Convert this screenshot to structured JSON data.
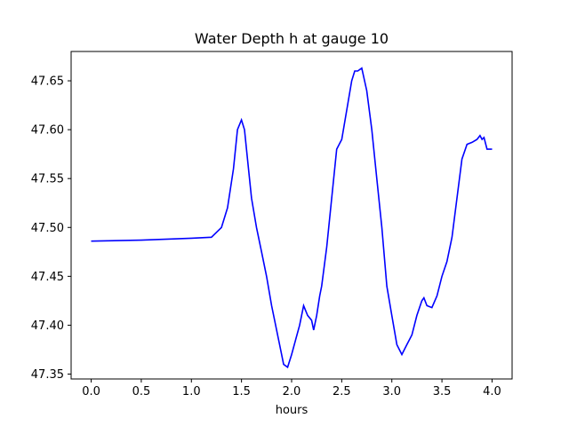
{
  "chart_data": {
    "type": "line",
    "title": "Water Depth h at gauge 10",
    "xlabel": "hours",
    "ylabel": "",
    "xlim": [
      -0.2,
      4.2
    ],
    "ylim": [
      47.345,
      47.68
    ],
    "xticks": [
      0.0,
      0.5,
      1.0,
      1.5,
      2.0,
      2.5,
      3.0,
      3.5,
      4.0
    ],
    "xtick_labels": [
      "0.0",
      "0.5",
      "1.0",
      "1.5",
      "2.0",
      "2.5",
      "3.0",
      "3.5",
      "4.0"
    ],
    "yticks": [
      47.35,
      47.4,
      47.45,
      47.5,
      47.55,
      47.6,
      47.65
    ],
    "ytick_labels": [
      "47.35",
      "47.40",
      "47.45",
      "47.50",
      "47.55",
      "47.60",
      "47.65"
    ],
    "grid": false,
    "color": "#0000ff",
    "series": [
      {
        "x": [
          0.0,
          0.5,
          1.0,
          1.2,
          1.3,
          1.36,
          1.42,
          1.46,
          1.5,
          1.53,
          1.57,
          1.6,
          1.65,
          1.7,
          1.75,
          1.8,
          1.84,
          1.88,
          1.92,
          1.96,
          2.0,
          2.04,
          2.08,
          2.12,
          2.16,
          2.2,
          2.22,
          2.25,
          2.28,
          2.3,
          2.35,
          2.4,
          2.45,
          2.5,
          2.55,
          2.6,
          2.63,
          2.66,
          2.7,
          2.75,
          2.8,
          2.85,
          2.9,
          2.95,
          3.0,
          3.05,
          3.1,
          3.15,
          3.2,
          3.25,
          3.3,
          3.32,
          3.35,
          3.4,
          3.45,
          3.5,
          3.55,
          3.6,
          3.65,
          3.7,
          3.75,
          3.8,
          3.85,
          3.88,
          3.9,
          3.92,
          3.95,
          4.0
        ],
        "y": [
          47.486,
          47.487,
          47.489,
          47.49,
          47.5,
          47.52,
          47.56,
          47.6,
          47.61,
          47.6,
          47.56,
          47.53,
          47.5,
          47.475,
          47.45,
          47.42,
          47.4,
          47.38,
          47.36,
          47.357,
          47.37,
          47.385,
          47.4,
          47.42,
          47.41,
          47.405,
          47.395,
          47.41,
          47.43,
          47.44,
          47.48,
          47.53,
          47.58,
          47.59,
          47.62,
          47.65,
          47.66,
          47.66,
          47.663,
          47.64,
          47.6,
          47.55,
          47.5,
          47.44,
          47.41,
          47.38,
          47.37,
          47.38,
          47.39,
          47.41,
          47.425,
          47.428,
          47.42,
          47.418,
          47.43,
          47.45,
          47.465,
          47.49,
          47.53,
          47.57,
          47.585,
          47.587,
          47.59,
          47.594,
          47.59,
          47.592,
          47.58,
          47.58
        ]
      }
    ]
  }
}
